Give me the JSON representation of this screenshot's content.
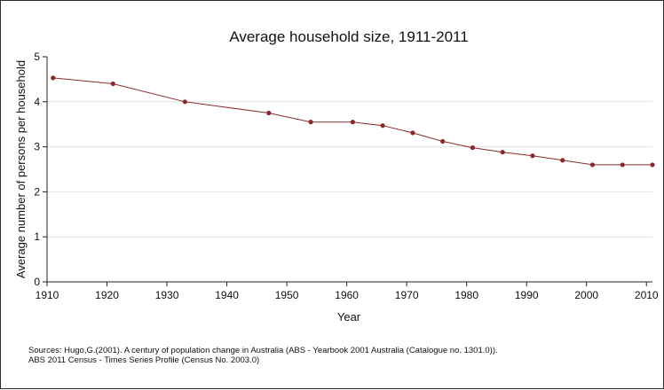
{
  "chart_data": {
    "type": "line",
    "title": "Average household size, 1911-2011",
    "xlabel": "Year",
    "ylabel": "Average number of persons per household",
    "xlim": [
      1910,
      2011
    ],
    "ylim": [
      0,
      5
    ],
    "x_ticks": [
      "1910",
      "1920",
      "1930",
      "1940",
      "1950",
      "1960",
      "1970",
      "1980",
      "1990",
      "2000",
      "2010"
    ],
    "y_ticks": [
      "0",
      "1",
      "2",
      "3",
      "4",
      "5"
    ],
    "grid": "horizontal",
    "series": [
      {
        "color": "#8b2a2a",
        "x": [
          1911,
          1921,
          1933,
          1947,
          1954,
          1961,
          1966,
          1971,
          1976,
          1981,
          1986,
          1991,
          1996,
          2001,
          2006,
          2011
        ],
        "y": [
          4.53,
          4.4,
          4.0,
          3.75,
          3.55,
          3.55,
          3.47,
          3.31,
          3.12,
          2.98,
          2.88,
          2.8,
          2.7,
          2.6,
          2.6,
          2.6
        ]
      }
    ]
  },
  "sources": [
    "Sources: Hugo,G.(2001). A century of population change in Australia (ABS - Yearbook 2001 Australia (Catalogue no. 1301.0)).",
    "ABS 2011 Census - Times Series Profile (Census No. 2003.0)"
  ]
}
